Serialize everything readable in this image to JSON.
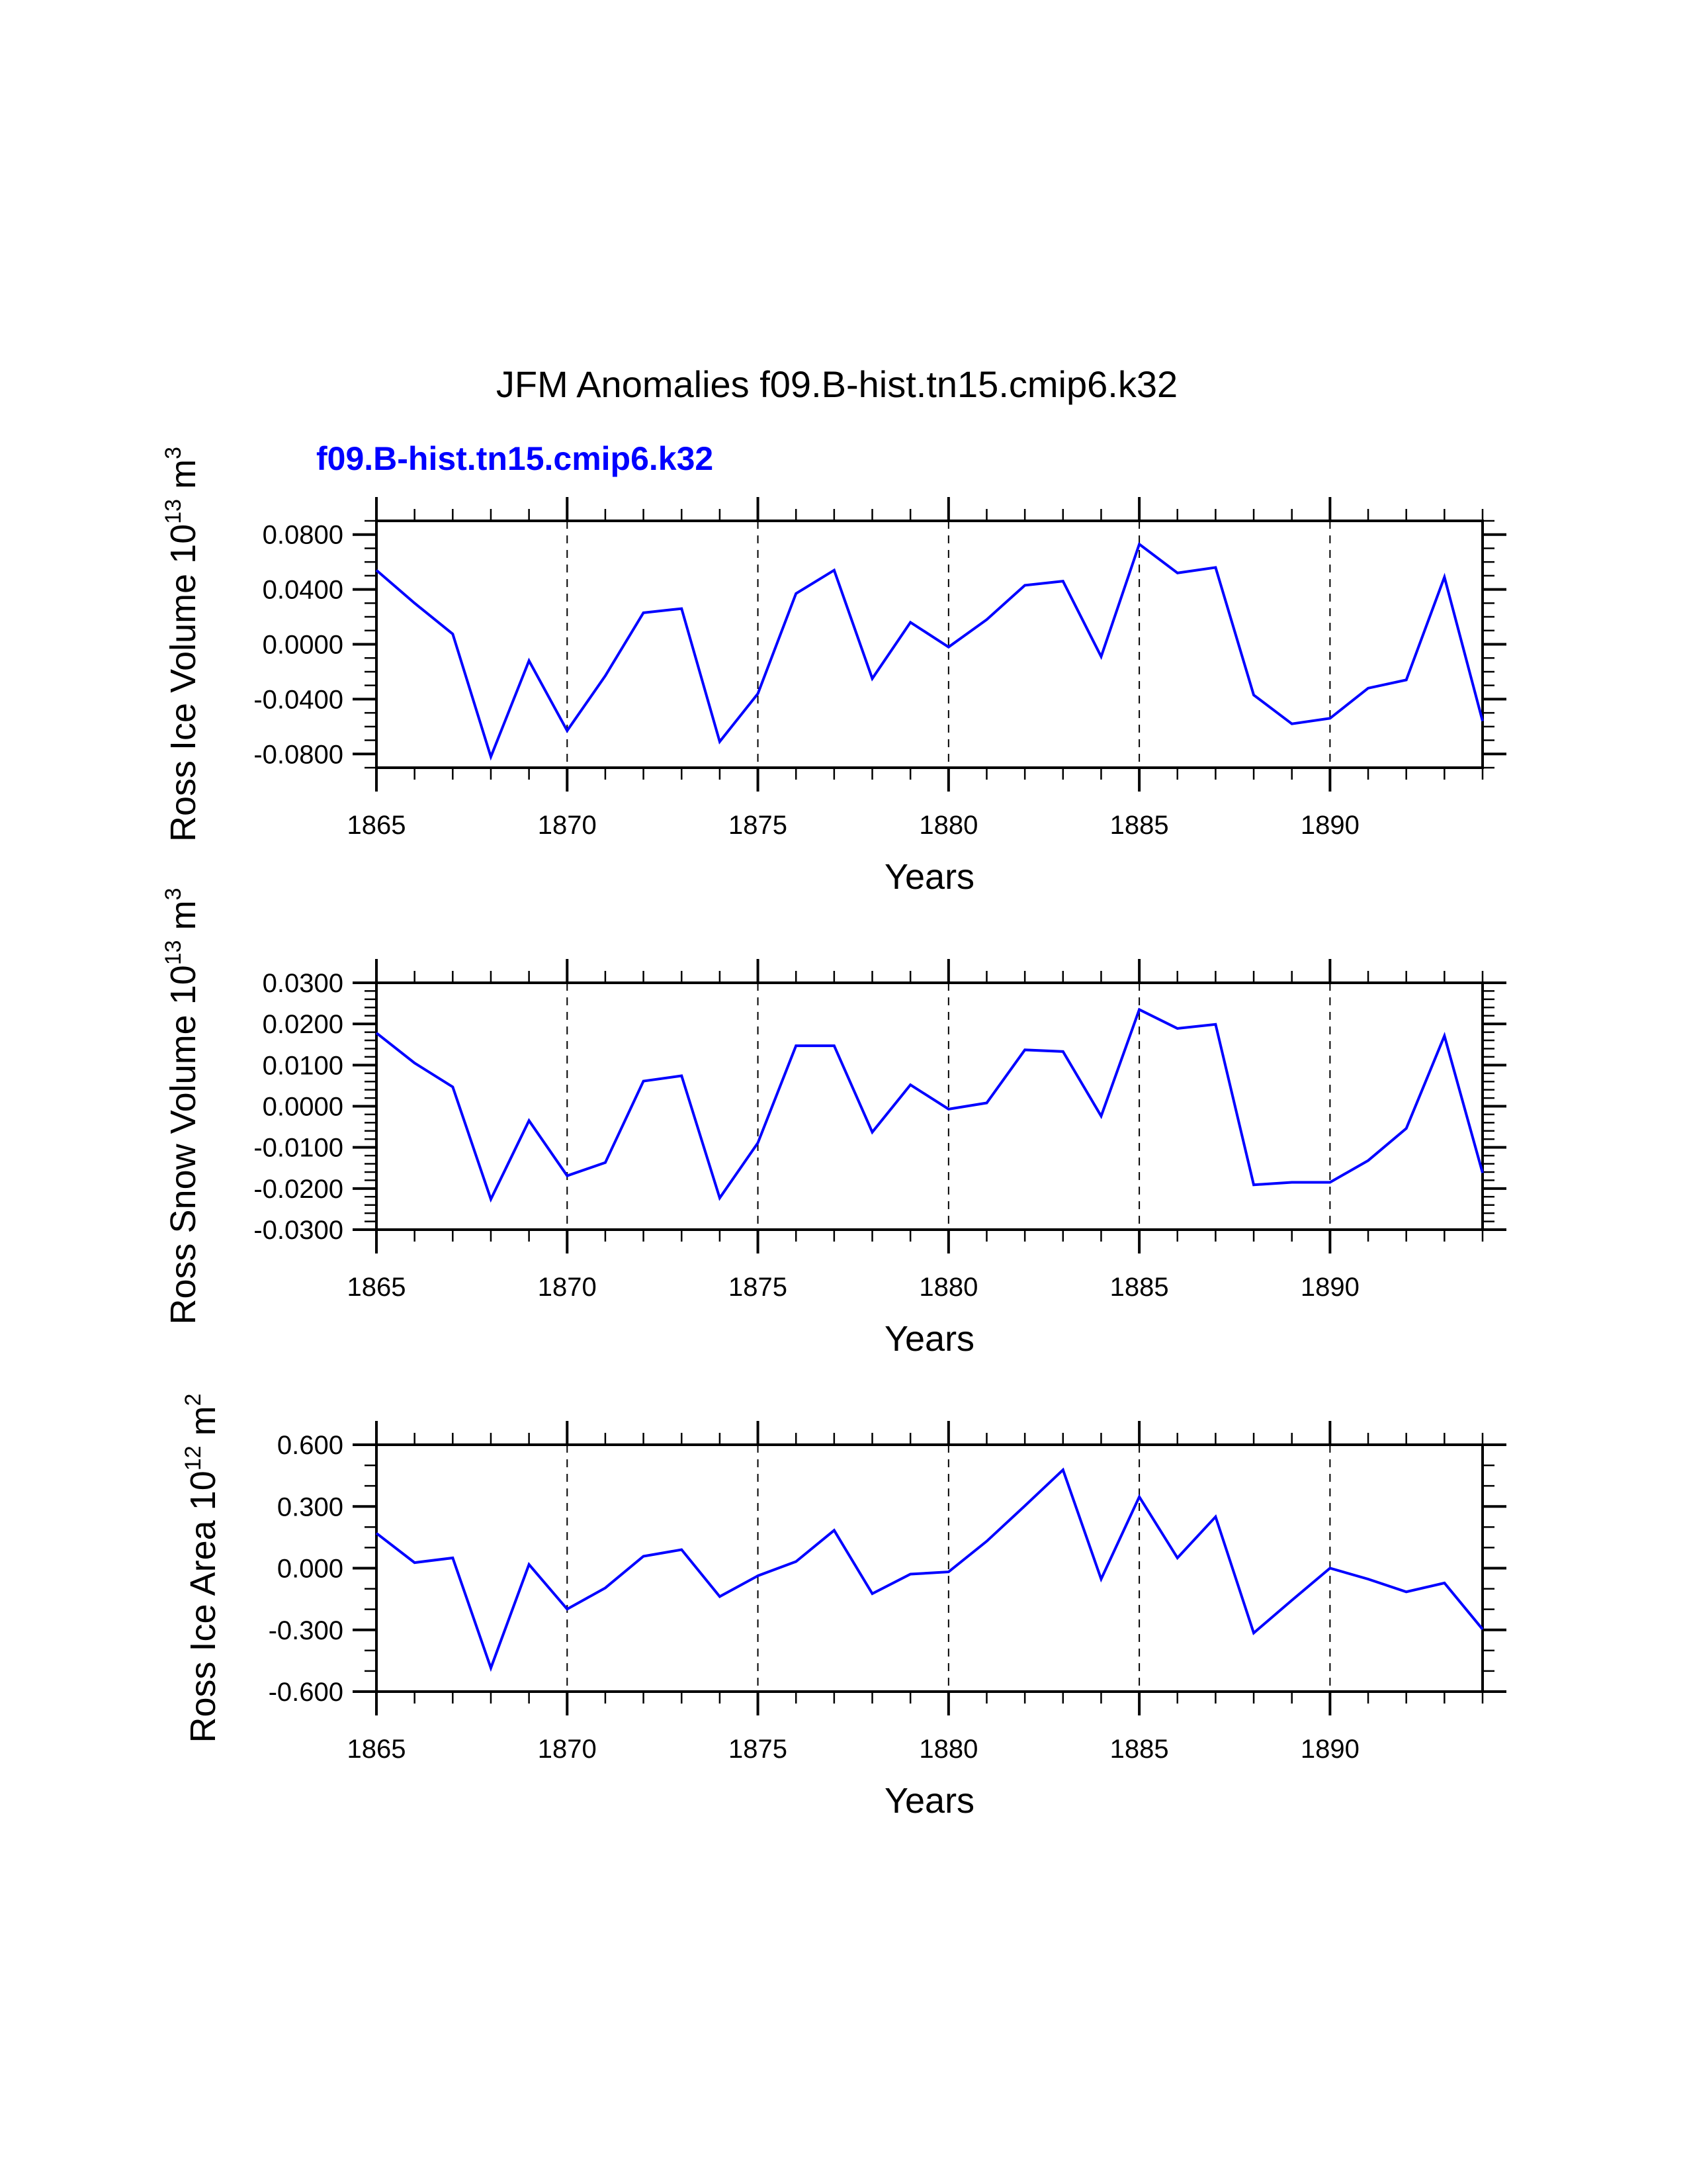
{
  "chart_data": [
    {
      "type": "line",
      "title": "JFM Anomalies f09.B-hist.tn15.cmip6.k32",
      "legend_label": "f09.B-hist.tn15.cmip6.k32",
      "xlabel": "Years",
      "ylabel": "Ross Ice Volume 10^13 m^3",
      "ylabel_parts": {
        "base": "Ross Ice Volume 10",
        "exp1": "13",
        "unit": " m",
        "exp2": "3"
      },
      "xlim": [
        1865,
        1894
      ],
      "ylim": [
        -0.09,
        0.09
      ],
      "x_ticks": [
        1865,
        1870,
        1875,
        1880,
        1885,
        1890
      ],
      "x_tick_labels": [
        "1865",
        "1870",
        "1875",
        "1880",
        "1885",
        "1890"
      ],
      "y_ticks": [
        0.08,
        0.04,
        0.0,
        -0.04,
        -0.08
      ],
      "y_tick_labels": [
        "0.0800",
        "0.0400",
        "0.0000",
        "-0.0400",
        "-0.0800"
      ],
      "y_minor_step": 0.01,
      "grid": "dashed vertical lines at 1870, 1875, 1880, 1885, 1890",
      "series": [
        {
          "name": "f09.B-hist.tn15.cmip6.k32",
          "color": "#0000ff",
          "x": [
            1865,
            1866,
            1867,
            1868,
            1869,
            1870,
            1871,
            1872,
            1873,
            1874,
            1875,
            1876,
            1877,
            1878,
            1879,
            1880,
            1881,
            1882,
            1883,
            1884,
            1885,
            1886,
            1887,
            1888,
            1889,
            1890,
            1891,
            1892,
            1893,
            1894
          ],
          "values": [
            0.054,
            0.03,
            0.0075,
            -0.082,
            -0.012,
            -0.063,
            -0.023,
            0.023,
            0.026,
            -0.071,
            -0.036,
            0.037,
            0.054,
            -0.025,
            0.016,
            -0.002,
            0.018,
            0.043,
            0.046,
            -0.009,
            0.073,
            0.052,
            0.056,
            -0.037,
            -0.058,
            -0.054,
            -0.032,
            -0.026,
            0.049,
            -0.056
          ]
        }
      ]
    },
    {
      "type": "line",
      "xlabel": "Years",
      "ylabel": "Ross Snow Volume 10^13 m^3",
      "ylabel_parts": {
        "base": "Ross Snow Volume 10",
        "exp1": "13",
        "unit": " m",
        "exp2": "3"
      },
      "xlim": [
        1865,
        1894
      ],
      "ylim": [
        -0.03,
        0.03
      ],
      "x_ticks": [
        1865,
        1870,
        1875,
        1880,
        1885,
        1890
      ],
      "x_tick_labels": [
        "1865",
        "1870",
        "1875",
        "1880",
        "1885",
        "1890"
      ],
      "y_ticks": [
        0.03,
        0.02,
        0.01,
        0.0,
        -0.01,
        -0.02,
        -0.03
      ],
      "y_tick_labels": [
        "0.0300",
        "0.0200",
        "0.0100",
        "0.0000",
        "-0.0100",
        "-0.0200",
        "-0.0300"
      ],
      "y_minor_step": 0.002,
      "grid": "dashed vertical lines at 1870, 1875, 1880, 1885, 1890",
      "series": [
        {
          "name": "f09.B-hist.tn15.cmip6.k32",
          "color": "#0000ff",
          "x": [
            1865,
            1866,
            1867,
            1868,
            1869,
            1870,
            1871,
            1872,
            1873,
            1874,
            1875,
            1876,
            1877,
            1878,
            1879,
            1880,
            1881,
            1882,
            1883,
            1884,
            1885,
            1886,
            1887,
            1888,
            1889,
            1890,
            1891,
            1892,
            1893,
            1894
          ],
          "values": [
            0.0178,
            0.0105,
            0.0047,
            -0.0226,
            -0.0035,
            -0.0169,
            -0.0137,
            0.0061,
            0.0074,
            -0.0223,
            -0.0089,
            0.0147,
            0.0147,
            -0.0063,
            0.0052,
            -0.0007,
            0.0008,
            0.0137,
            0.0133,
            -0.0024,
            0.0235,
            0.0189,
            0.0199,
            -0.0191,
            -0.0185,
            -0.0185,
            -0.0132,
            -0.0054,
            0.0171,
            -0.0162
          ]
        }
      ]
    },
    {
      "type": "line",
      "xlabel": "Years",
      "ylabel": "Ross Ice Area 10^12 m^2",
      "ylabel_parts": {
        "base": "Ross Ice Area 10",
        "exp1": "12",
        "unit": " m",
        "exp2": "2"
      },
      "xlim": [
        1865,
        1894
      ],
      "ylim": [
        -0.6,
        0.6
      ],
      "x_ticks": [
        1865,
        1870,
        1875,
        1880,
        1885,
        1890
      ],
      "x_tick_labels": [
        "1865",
        "1870",
        "1875",
        "1880",
        "1885",
        "1890"
      ],
      "y_ticks": [
        0.6,
        0.3,
        0.0,
        -0.3,
        -0.6
      ],
      "y_tick_labels": [
        "0.600",
        "0.300",
        "0.000",
        "-0.300",
        "-0.600"
      ],
      "y_minor_step": 0.1,
      "grid": "dashed vertical lines at 1870, 1875, 1880, 1885, 1890",
      "series": [
        {
          "name": "f09.B-hist.tn15.cmip6.k32",
          "color": "#0000ff",
          "x": [
            1865,
            1866,
            1867,
            1868,
            1869,
            1870,
            1871,
            1872,
            1873,
            1874,
            1875,
            1876,
            1877,
            1878,
            1879,
            1880,
            1881,
            1882,
            1883,
            1884,
            1885,
            1886,
            1887,
            1888,
            1889,
            1890,
            1891,
            1892,
            1893,
            1894
          ],
          "values": [
            0.17,
            0.027,
            0.05,
            -0.485,
            0.018,
            -0.199,
            -0.096,
            0.058,
            0.09,
            -0.138,
            -0.037,
            0.032,
            0.184,
            -0.124,
            -0.029,
            -0.018,
            0.131,
            0.303,
            0.478,
            -0.053,
            0.347,
            0.05,
            0.25,
            -0.315,
            -0.156,
            0.0,
            -0.053,
            -0.115,
            -0.072,
            -0.297
          ]
        }
      ]
    }
  ],
  "colors": {
    "series": "#0000ff",
    "axes": "#000000",
    "legend_text": "#0000ff"
  }
}
